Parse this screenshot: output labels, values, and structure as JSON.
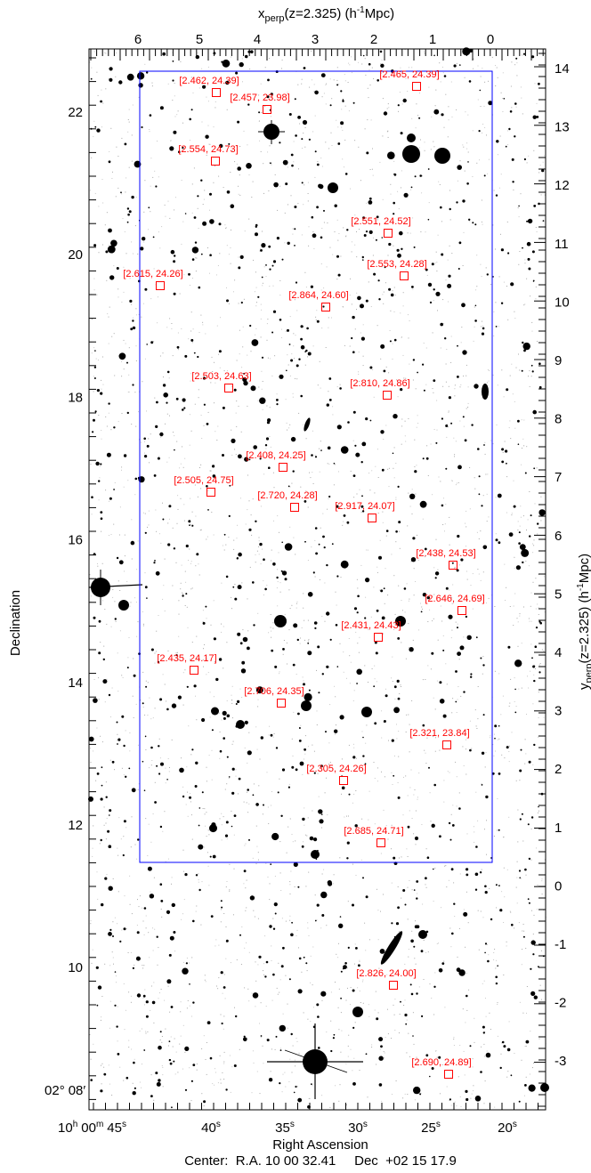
{
  "figure": {
    "top_axis_title_main": "x",
    "top_axis_title_sub": "perp",
    "top_axis_title_rest": "(z=2.325) (h",
    "top_axis_title_sup": "-1",
    "top_axis_title_unit": "Mpc)",
    "right_axis_title_main": "y",
    "right_axis_title_sub": "perp",
    "right_axis_title_rest": "(z=2.325) (h",
    "right_axis_title_sup": "-1",
    "right_axis_title_unit": "Mpc)",
    "left_axis_title": "Declination",
    "bottom_axis_title": "Right Ascension",
    "center_line": "Center:  R.A. 10 00 32.41     Dec  +02 15 17.9",
    "colors": {
      "frame": "#000000",
      "box": "#0000ff",
      "markers": "#ff0000",
      "background": "#ffffff",
      "sources": "#000000"
    }
  },
  "top_ticks": [
    "6",
    "5",
    "4",
    "3",
    "2",
    "1",
    "0"
  ],
  "right_ticks": [
    "14",
    "13",
    "12",
    "11",
    "10",
    "9",
    "8",
    "7",
    "6",
    "5",
    "4",
    "3",
    "2",
    "1",
    "0",
    "-1",
    "-2",
    "-3"
  ],
  "left_ticks": [
    "22",
    "20",
    "18",
    "16",
    "14",
    "12",
    "10"
  ],
  "left_corner_label": {
    "deg": "02",
    "deg_sym": "°",
    "arcmin": "08",
    "arcmin_sym": "′"
  },
  "bottom_ticks": {
    "first_h": "10",
    "first_h_sup": "h",
    "first_m": "00",
    "first_m_sup": "m",
    "first_s": "45",
    "first_s_sup": "s",
    "others": [
      "40",
      "35",
      "30",
      "25",
      "20"
    ],
    "sec_sup": "s"
  },
  "objects": [
    {
      "label": "[2.462, 24.39]"
    },
    {
      "label": "[2.465, 24.39]"
    },
    {
      "label": "[2.457, 23.98]"
    },
    {
      "label": "[2.554, 24.73]"
    },
    {
      "label": "[2.551, 24.52]"
    },
    {
      "label": "[2.553, 24.28]"
    },
    {
      "label": "[2.615, 24.26]"
    },
    {
      "label": "[2.864, 24.60]"
    },
    {
      "label": "[2.503, 24.63]"
    },
    {
      "label": "[2.810, 24.86]"
    },
    {
      "label": "[2.408, 24.25]"
    },
    {
      "label": "[2.505, 24.75]"
    },
    {
      "label": "[2.720, 24.28]"
    },
    {
      "label": "[2.917, 24.07]"
    },
    {
      "label": "[2.438, 24.53]"
    },
    {
      "label": "[2.646, 24.69]"
    },
    {
      "label": "[2.431, 24.43]"
    },
    {
      "label": "[2.435, 24.17]"
    },
    {
      "label": "[2.706, 24.35]"
    },
    {
      "label": "[2.321, 23.84]"
    },
    {
      "label": "[2.305, 24.26]"
    },
    {
      "label": "[2.685, 24.71]"
    },
    {
      "label": "[2.826, 24.00]"
    },
    {
      "label": "[2.690, 24.89]"
    }
  ]
}
